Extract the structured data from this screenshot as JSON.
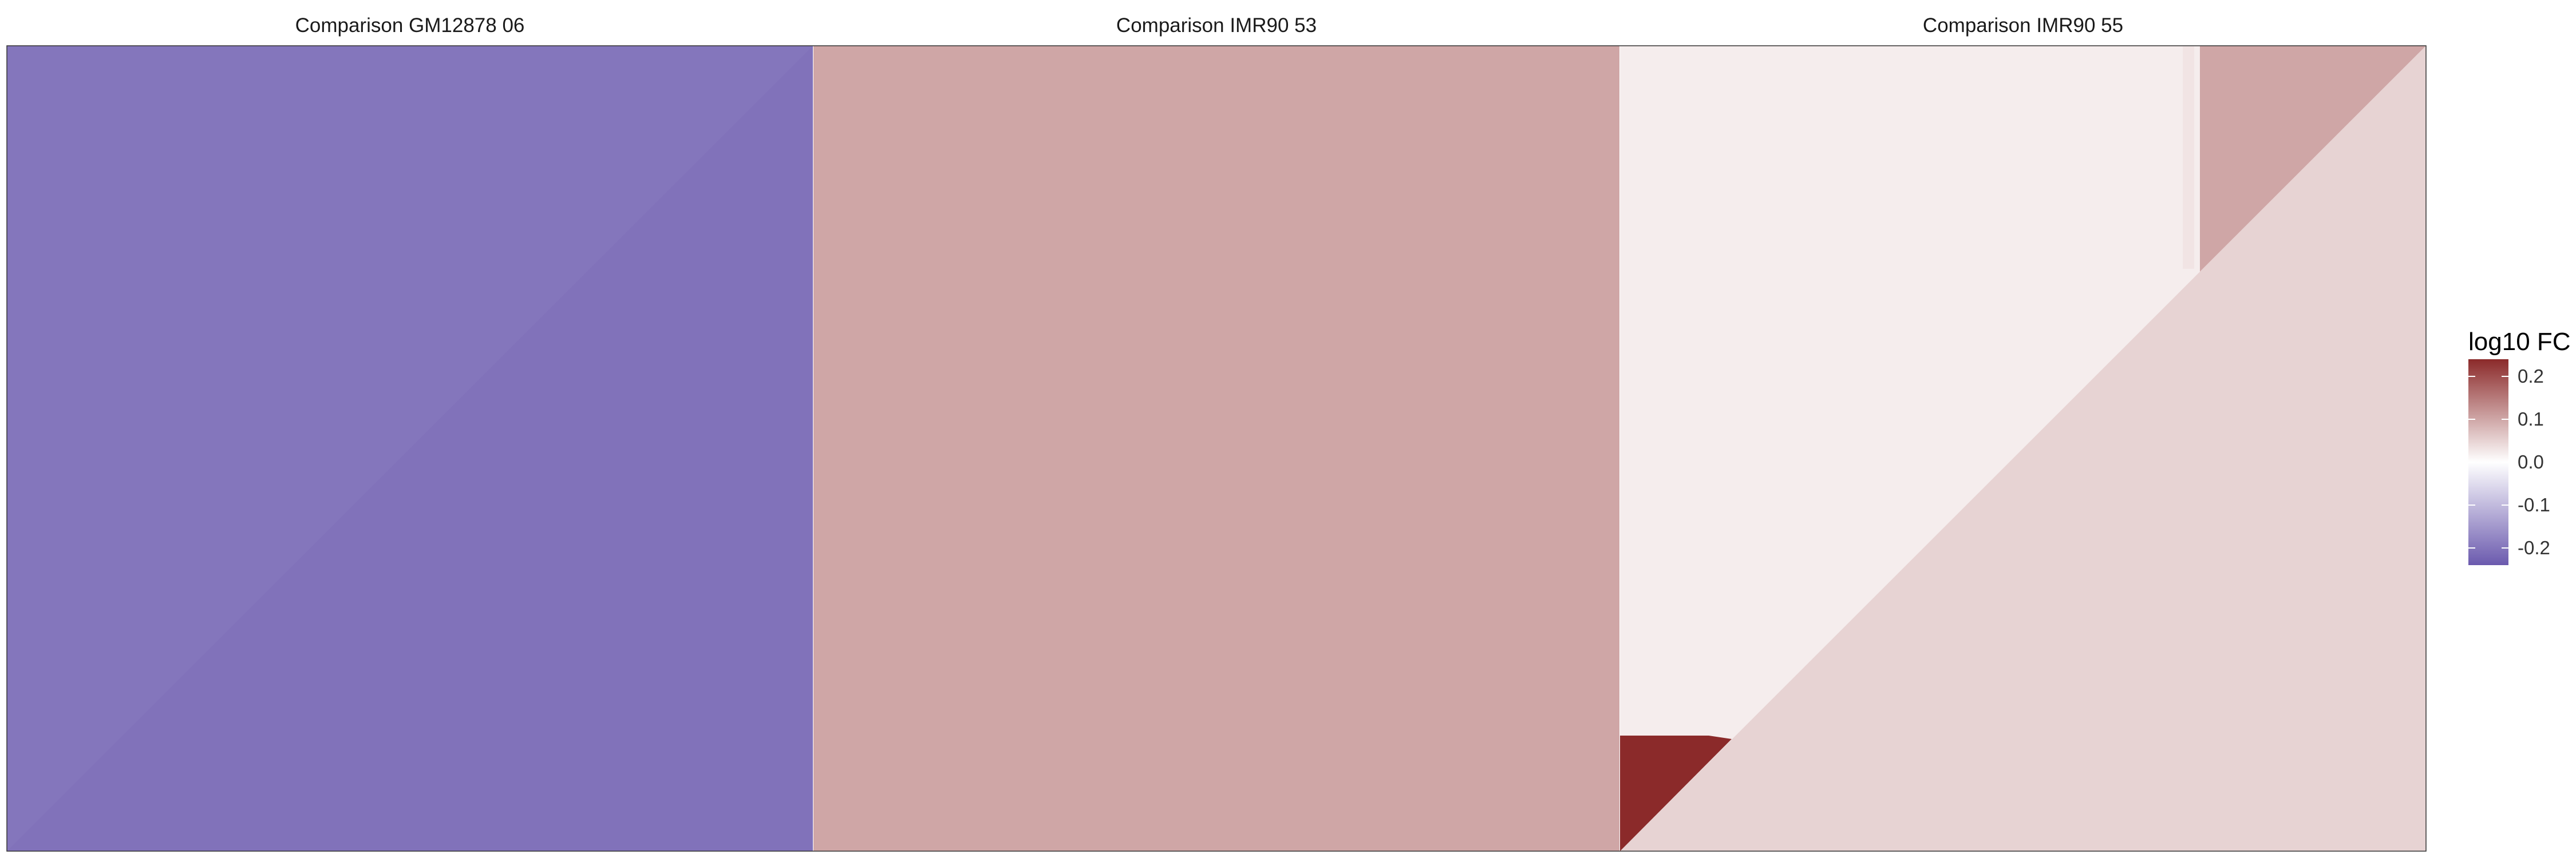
{
  "chart_data": {
    "type": "heatmap",
    "description_scale": "diverging color scale",
    "panels": [
      {
        "title": "Comparison GM12878 06",
        "fill_value": -0.2,
        "regions": [
          {
            "shape": "full",
            "value": -0.2
          }
        ]
      },
      {
        "title": "Comparison IMR90 53",
        "fill_value": 0.1,
        "regions": [
          {
            "shape": "full",
            "value": 0.1
          }
        ]
      },
      {
        "title": "Comparison IMR90 55",
        "fill_value": 0.03,
        "regions": [
          {
            "shape": "upper-left",
            "value": 0.02
          },
          {
            "shape": "lower-right-triangle",
            "value": 0.05
          },
          {
            "shape": "top-right-block",
            "value": 0.1
          },
          {
            "shape": "bottom-left-block",
            "value": 0.24
          }
        ]
      }
    ],
    "legend": {
      "title": "log10 FC",
      "ticks": [
        "0.2",
        "0.1",
        "0.0",
        "-0.1",
        "-0.2"
      ],
      "tick_values": [
        0.2,
        0.1,
        0.0,
        -0.1,
        -0.2
      ],
      "range": [
        -0.24,
        0.24
      ],
      "colors": {
        "low": "#6b5aae",
        "mid": "#ffffff",
        "high": "#8b2a2a"
      },
      "placement": "right"
    }
  }
}
